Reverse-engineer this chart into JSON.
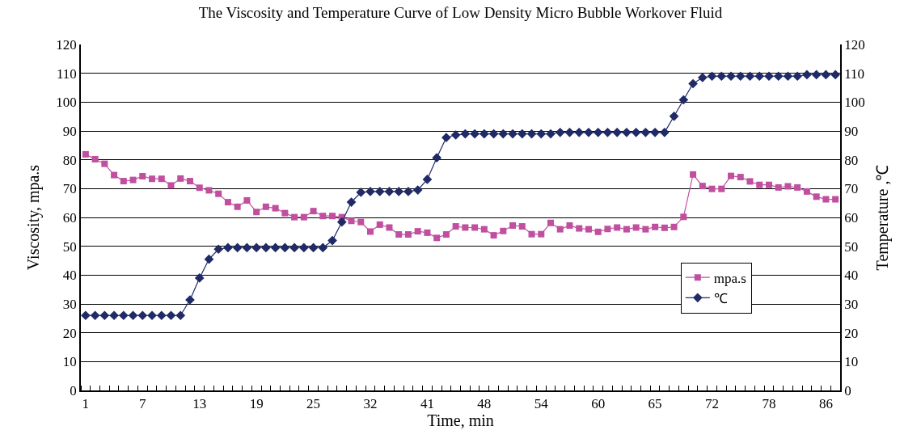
{
  "chart_data": {
    "type": "line",
    "title": "The Viscosity and Temperature Curve of Low Density Micro Bubble Workover Fluid",
    "xlabel": "Time, min",
    "ylabel": "Viscosity, mpa.s",
    "y2label": "Temperature ,℃",
    "categories": [
      "1",
      null,
      null,
      null,
      null,
      null,
      "7",
      null,
      null,
      null,
      null,
      null,
      "13",
      null,
      null,
      null,
      null,
      null,
      "19",
      null,
      null,
      null,
      null,
      null,
      "25",
      null,
      null,
      null,
      null,
      null,
      "32",
      null,
      null,
      null,
      null,
      null,
      "41",
      null,
      null,
      null,
      null,
      null,
      "48",
      null,
      null,
      null,
      null,
      null,
      "54",
      null,
      null,
      null,
      null,
      null,
      "60",
      null,
      null,
      null,
      null,
      null,
      "65",
      null,
      null,
      null,
      null,
      null,
      "72",
      null,
      null,
      null,
      null,
      null,
      "78",
      null,
      null,
      null,
      null,
      null,
      "86",
      null
    ],
    "series": [
      {
        "name": "mpa.s",
        "color": "#c0509f",
        "marker": "square",
        "values": [
          81.9,
          80.2,
          78.6,
          74.7,
          72.6,
          73,
          74.3,
          73.4,
          73.4,
          71.1,
          73.5,
          72.6,
          70.3,
          69.4,
          68.2,
          65.3,
          63.7,
          65.9,
          61.9,
          63.7,
          63.2,
          61.5,
          60.1,
          60.1,
          62.2,
          60.5,
          60.5,
          60.1,
          58.8,
          58.4,
          55.1,
          57.5,
          56.5,
          54.1,
          54.1,
          55.2,
          54.7,
          52.9,
          54.1,
          56.9,
          56.5,
          56.5,
          55.9,
          53.8,
          55.3,
          57.2,
          56.9,
          54.2,
          54.2,
          58.1,
          55.9,
          57.2,
          56.2,
          55.9,
          55,
          56,
          56.5,
          55.9,
          56.5,
          55.9,
          56.7,
          56.4,
          56.7,
          60.2,
          74.9,
          70.9,
          69.9,
          69.9,
          74.4,
          74,
          72.5,
          71.3,
          71.3,
          70.4,
          70.8,
          70.4,
          69,
          67.2,
          66.3,
          66.3
        ]
      },
      {
        "name": "℃",
        "color": "#1f2a66",
        "marker": "diamond",
        "axis": "y2",
        "values": [
          26,
          26,
          26,
          26,
          26,
          26,
          26,
          26,
          26,
          26,
          26,
          31.4,
          39,
          45.5,
          49,
          49.5,
          49.5,
          49.5,
          49.5,
          49.5,
          49.5,
          49.5,
          49.5,
          49.5,
          49.5,
          49.5,
          52,
          58.4,
          65.3,
          68.7,
          69,
          69,
          69,
          69,
          69,
          69.5,
          73.2,
          80.7,
          87.7,
          88.6,
          89,
          89,
          89,
          89,
          89,
          89,
          89,
          89,
          89,
          89,
          89.5,
          89.5,
          89.5,
          89.5,
          89.5,
          89.5,
          89.5,
          89.5,
          89.5,
          89.5,
          89.5,
          89.5,
          95.1,
          100.8,
          106.4,
          108.5,
          109,
          109,
          109,
          109,
          109,
          109,
          109,
          109,
          109,
          109,
          109.5,
          109.5,
          109.5,
          109.5
        ]
      }
    ],
    "ylim": [
      0,
      120
    ],
    "yticks": [
      0,
      10,
      20,
      30,
      40,
      50,
      60,
      70,
      80,
      90,
      100,
      110,
      120
    ],
    "y2lim": [
      0,
      120
    ],
    "y2ticks": [
      0,
      10,
      20,
      30,
      40,
      50,
      60,
      70,
      80,
      90,
      100,
      110,
      120
    ],
    "grid": "y",
    "legend": "right",
    "line_style": "solid"
  }
}
